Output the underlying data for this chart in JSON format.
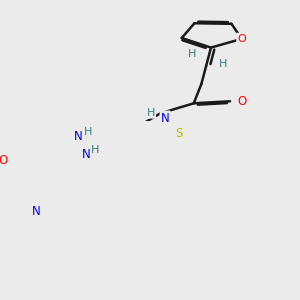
{
  "bg_color": "#ebebeb",
  "bond_color": "#1a1a1a",
  "atom_colors": {
    "O": "#ff0000",
    "N": "#0000ee",
    "S": "#bbbb00",
    "H": "#3a8080",
    "C": "#1a1a1a"
  }
}
